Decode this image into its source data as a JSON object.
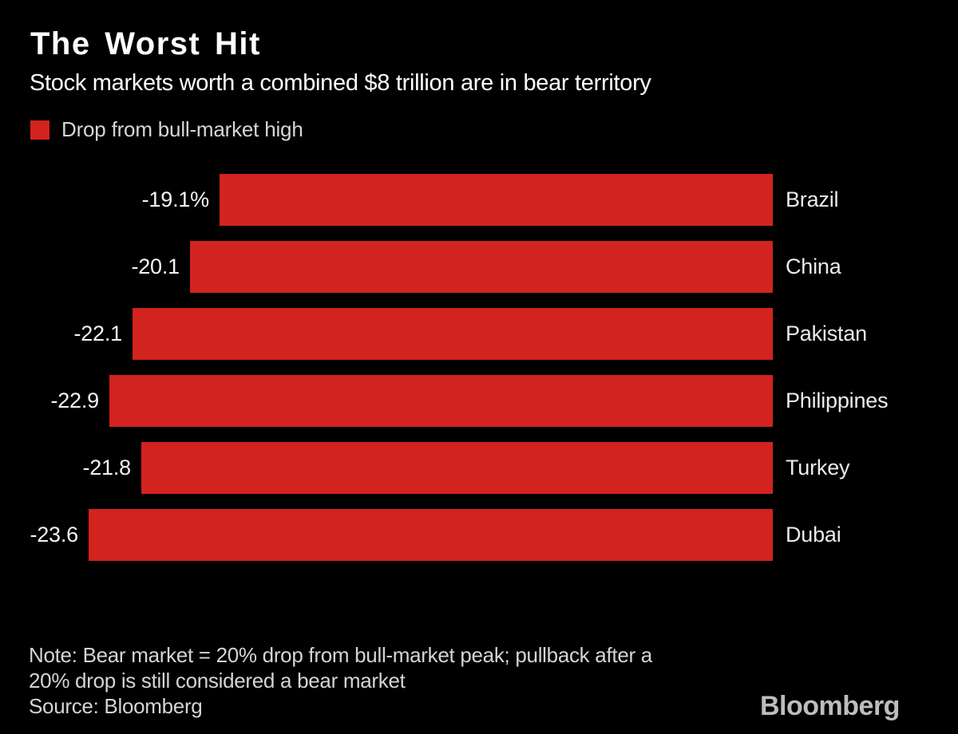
{
  "header": {
    "title": "The Worst Hit",
    "subtitle": "Stock markets worth a combined $8 trillion are in bear territory"
  },
  "legend": {
    "label": "Drop from bull-market high",
    "swatch_color": "#d2231e"
  },
  "chart_data": {
    "type": "bar",
    "orientation": "horizontal",
    "bars_right_aligned": true,
    "series_name": "Drop from bull-market high",
    "categories": [
      "Brazil",
      "China",
      "Pakistan",
      "Philippines",
      "Turkey",
      "Dubai"
    ],
    "values": [
      -19.1,
      -20.1,
      -22.1,
      -22.9,
      -21.8,
      -23.6
    ],
    "value_labels": [
      "-19.1%",
      "-20.1",
      "-22.1",
      "-22.9",
      "-21.8",
      "-23.6"
    ],
    "unit": "percent",
    "bar_color": "#d2231e",
    "background_color": "#000000",
    "xlim": [
      -24.5,
      0
    ],
    "grid": false,
    "legend_position": "top-left",
    "category_label_side": "right"
  },
  "footer": {
    "note_lines": [
      "Note: Bear market = 20% drop from bull-market peak; pullback after a",
      "20% drop is still considered a bear market"
    ],
    "source": "Source: Bloomberg",
    "logo": "Bloomberg"
  }
}
